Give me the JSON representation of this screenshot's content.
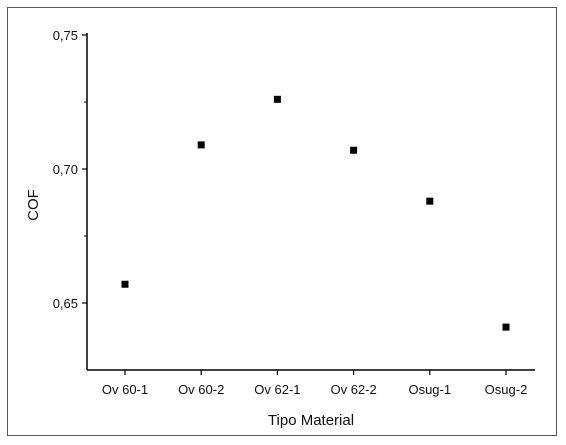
{
  "chart_data": {
    "type": "scatter",
    "title": "",
    "xlabel": "Tipo Material",
    "ylabel": "COF",
    "categories": [
      "Ov 60-1",
      "Ov 60-2",
      "Ov 62-1",
      "Ov 62-2",
      "Osug-1",
      "Osug-2"
    ],
    "values": [
      0.657,
      0.709,
      0.726,
      0.707,
      0.688,
      0.641
    ],
    "ylim": [
      0.625,
      0.75
    ],
    "yticks": [
      "0,65",
      "0,70",
      "0,75"
    ],
    "marker_color": "#000000",
    "grid": false,
    "legend": "none"
  }
}
